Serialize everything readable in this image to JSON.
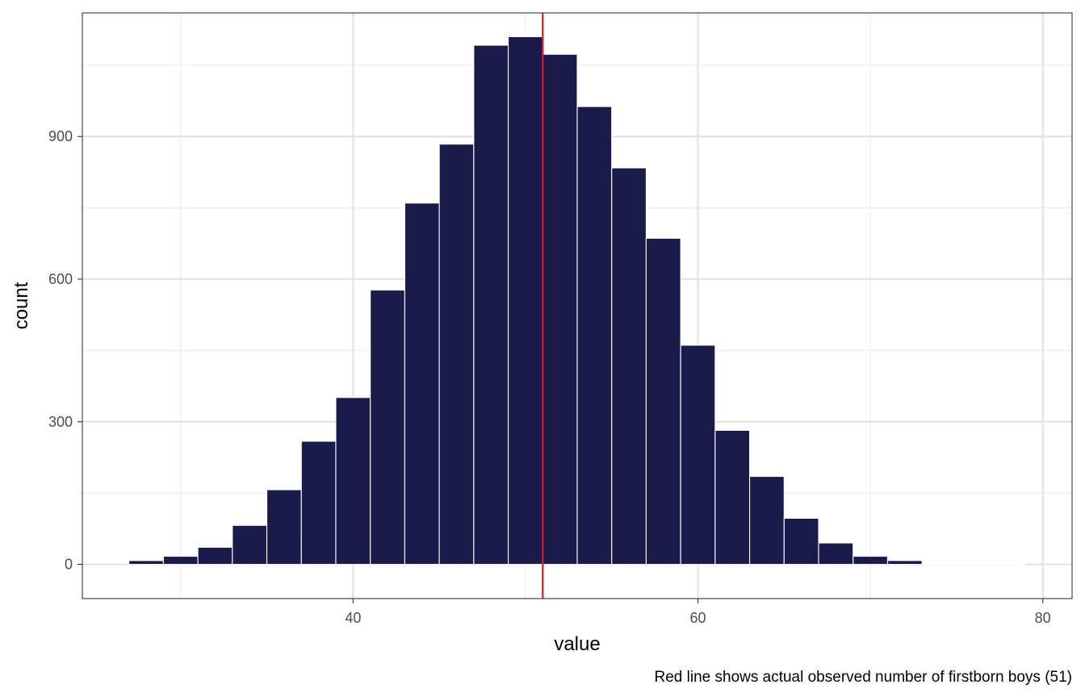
{
  "chart_data": {
    "type": "bar",
    "xlabel": "value",
    "ylabel": "count",
    "caption": "Red line shows actual observed number of firstborn boys (51)",
    "xlim": [
      24.3,
      81.7
    ],
    "ylim": [
      -72,
      1160
    ],
    "x_ticks": [
      40,
      60,
      80
    ],
    "y_ticks": [
      0,
      300,
      600,
      900
    ],
    "x_minor_ticks": [
      30,
      50,
      70
    ],
    "y_minor_ticks": [
      150,
      450,
      750,
      1050
    ],
    "grid": true,
    "bin_width": 2,
    "bins": [
      {
        "x": 28,
        "count": 8
      },
      {
        "x": 30,
        "count": 17
      },
      {
        "x": 32,
        "count": 36
      },
      {
        "x": 34,
        "count": 82
      },
      {
        "x": 36,
        "count": 157
      },
      {
        "x": 38,
        "count": 259
      },
      {
        "x": 40,
        "count": 351
      },
      {
        "x": 42,
        "count": 577
      },
      {
        "x": 44,
        "count": 760
      },
      {
        "x": 46,
        "count": 884
      },
      {
        "x": 48,
        "count": 1092
      },
      {
        "x": 50,
        "count": 1110
      },
      {
        "x": 52,
        "count": 1073
      },
      {
        "x": 54,
        "count": 963
      },
      {
        "x": 56,
        "count": 834
      },
      {
        "x": 58,
        "count": 686
      },
      {
        "x": 60,
        "count": 461
      },
      {
        "x": 62,
        "count": 282
      },
      {
        "x": 64,
        "count": 185
      },
      {
        "x": 66,
        "count": 97
      },
      {
        "x": 68,
        "count": 45
      },
      {
        "x": 70,
        "count": 17
      },
      {
        "x": 72,
        "count": 8
      },
      {
        "x": 74,
        "count": 1
      },
      {
        "x": 76,
        "count": 1
      },
      {
        "x": 78,
        "count": 1
      }
    ],
    "vline": {
      "x": 51,
      "color": "#e31a1c"
    },
    "bar_color": "#1b1b4b",
    "bar_outline": "#ffffff"
  }
}
